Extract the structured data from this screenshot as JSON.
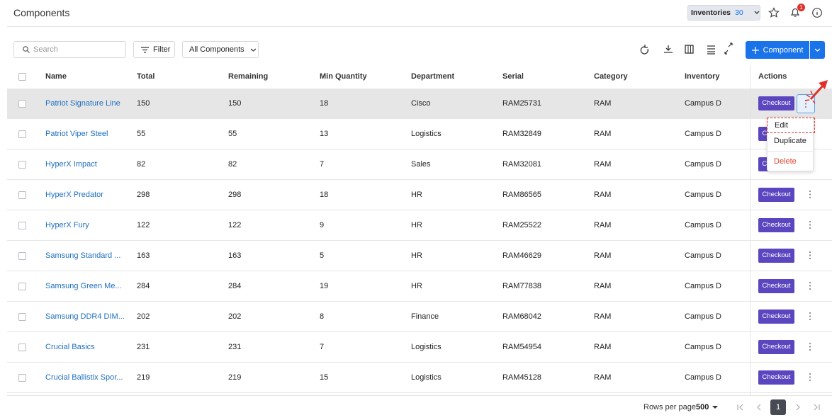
{
  "header": {
    "title": "Components",
    "inventories_label": "Inventories",
    "inventories_count": 30,
    "notification_count": 1
  },
  "toolbar": {
    "search_placeholder": "Search",
    "filter": "Filter",
    "scope": "All Components",
    "add_button": "Component"
  },
  "table": {
    "columns": [
      "Name",
      "Total",
      "Remaining",
      "Min Quantity",
      "Department",
      "Serial",
      "Category",
      "Inventory",
      "Actions"
    ],
    "rows": [
      [
        "Patriot Signature Line",
        150,
        150,
        18,
        "Cisco",
        "RAM25731",
        "RAM",
        "Campus D"
      ],
      [
        "Patriot Viper Steel",
        55,
        55,
        13,
        "Logistics",
        "RAM32849",
        "RAM",
        "Campus D"
      ],
      [
        "HyperX Impact",
        82,
        82,
        7,
        "Sales",
        "RAM32081",
        "RAM",
        "Campus D"
      ],
      [
        "HyperX Predator",
        298,
        298,
        18,
        "HR",
        "RAM86565",
        "RAM",
        "Campus D"
      ],
      [
        "HyperX Fury",
        122,
        122,
        9,
        "HR",
        "RAM25522",
        "RAM",
        "Campus D"
      ],
      [
        "Samsung Standard ...",
        163,
        163,
        5,
        "HR",
        "RAM46629",
        "RAM",
        "Campus D"
      ],
      [
        "Samsung Green Me...",
        284,
        284,
        19,
        "HR",
        "RAM77838",
        "RAM",
        "Campus D"
      ],
      [
        "Samsung DDR4 DIM...",
        202,
        202,
        8,
        "Finance",
        "RAM68042",
        "RAM",
        "Campus D"
      ],
      [
        "Crucial Basics",
        231,
        231,
        7,
        "Logistics",
        "RAM54954",
        "RAM",
        "Campus D"
      ],
      [
        "Crucial Ballistix Spor...",
        219,
        219,
        15,
        "Logistics",
        "RAM45128",
        "RAM",
        "Campus D"
      ]
    ],
    "action": "Checkout"
  },
  "menu": {
    "items": [
      "Edit",
      "Duplicate",
      "Delete"
    ]
  },
  "footer": {
    "rows_per_page_label": "Rows per page",
    "rows_per_page": 500,
    "page": 1
  }
}
